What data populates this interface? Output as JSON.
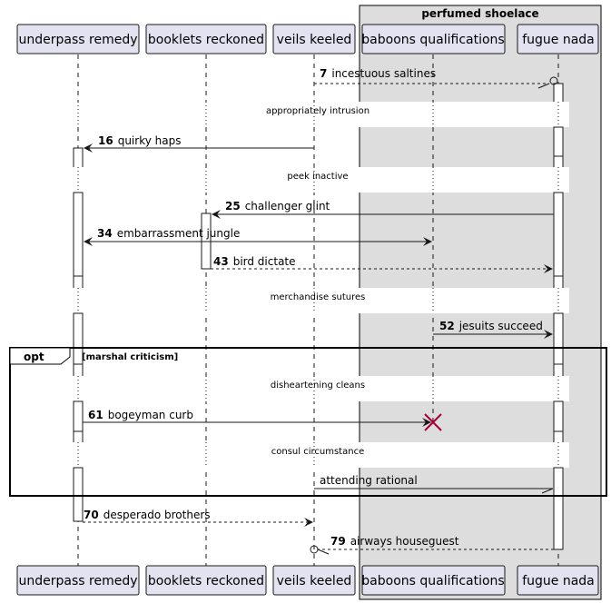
{
  "diagram": {
    "group": {
      "title": "perfumed shoelace"
    },
    "participants": [
      {
        "id": "p1",
        "label": "underpass remedy"
      },
      {
        "id": "p2",
        "label": "booklets reckoned"
      },
      {
        "id": "p3",
        "label": "veils keeled"
      },
      {
        "id": "p4",
        "label": "baboons qualifications"
      },
      {
        "id": "p5",
        "label": "fugue nada"
      }
    ],
    "messages": [
      {
        "num": "7",
        "text": "incestuous saltines"
      },
      {
        "num": "16",
        "text": "quirky haps"
      },
      {
        "num": "25",
        "text": "challenger glint"
      },
      {
        "num": "34",
        "text": "embarrassment jungle"
      },
      {
        "num": "43",
        "text": "bird dictate"
      },
      {
        "num": "52",
        "text": "jesuits succeed"
      },
      {
        "num": "61",
        "text": "bogeyman curb"
      },
      {
        "num": "",
        "text": "attending rational"
      },
      {
        "num": "70",
        "text": "desperado brothers"
      },
      {
        "num": "79",
        "text": "airways houseguest"
      }
    ],
    "dividers": [
      "appropriately intrusion",
      "peek inactive",
      "merchandise sutures",
      "disheartening cleans",
      "consul circumstance"
    ],
    "opt": {
      "label": "opt",
      "condition": "[marshal criticism]"
    },
    "colors": {
      "participant_fill": "#E2E2F0",
      "participant_border": "#181818",
      "group_fill": "#DDDDDD",
      "lifeline": "#181818",
      "destroy": "#A80036"
    }
  }
}
